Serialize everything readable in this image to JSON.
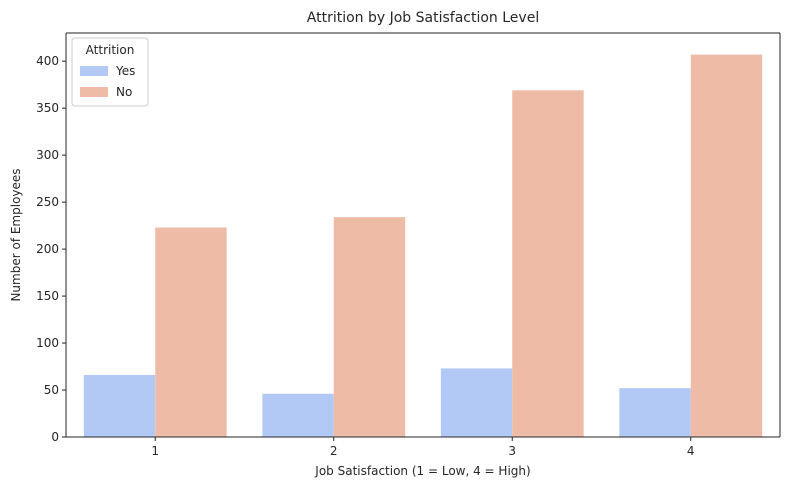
{
  "chart_data": {
    "type": "bar",
    "title": "Attrition by Job Satisfaction Level",
    "xlabel": "Job Satisfaction (1 = Low, 4 = High)",
    "ylabel": "Number of Employees",
    "categories": [
      "1",
      "2",
      "3",
      "4"
    ],
    "series": [
      {
        "name": "Yes",
        "color": "#b3c9f5",
        "values": [
          66,
          46,
          73,
          52
        ]
      },
      {
        "name": "No",
        "color": "#edbba6",
        "values": [
          223,
          234,
          369,
          407
        ]
      }
    ],
    "ylim": [
      0,
      430
    ],
    "yticks": [
      0,
      50,
      100,
      150,
      200,
      250,
      300,
      350,
      400
    ],
    "legend": {
      "title": "Attrition",
      "placement": "top-left"
    },
    "grid": false
  }
}
